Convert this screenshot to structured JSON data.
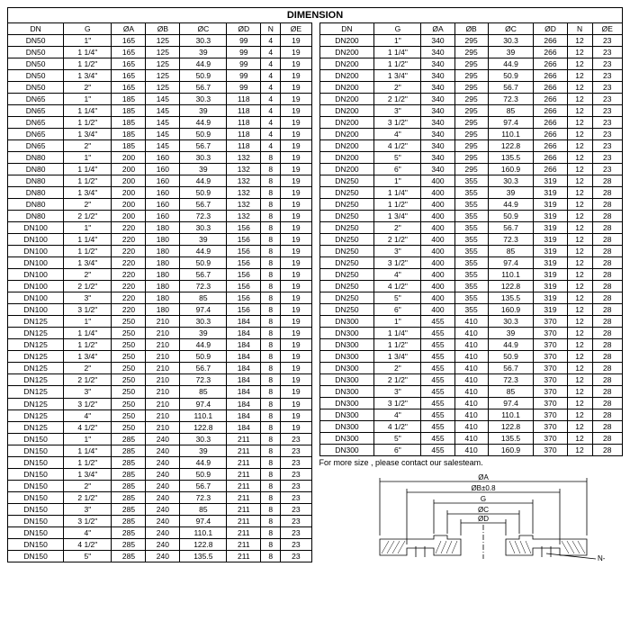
{
  "title": "DIMENSION",
  "columns": [
    "DN",
    "G",
    "ØA",
    "ØB",
    "ØC",
    "ØD",
    "N",
    "ØE"
  ],
  "note": "For more size , please contact our salesteam.",
  "left_rows": [
    [
      "DN50",
      "1\"",
      "165",
      "125",
      "30.3",
      "99",
      "4",
      "19"
    ],
    [
      "DN50",
      "1 1/4\"",
      "165",
      "125",
      "39",
      "99",
      "4",
      "19"
    ],
    [
      "DN50",
      "1 1/2\"",
      "165",
      "125",
      "44.9",
      "99",
      "4",
      "19"
    ],
    [
      "DN50",
      "1 3/4\"",
      "165",
      "125",
      "50.9",
      "99",
      "4",
      "19"
    ],
    [
      "DN50",
      "2\"",
      "165",
      "125",
      "56.7",
      "99",
      "4",
      "19"
    ],
    [
      "DN65",
      "1\"",
      "185",
      "145",
      "30.3",
      "118",
      "4",
      "19"
    ],
    [
      "DN65",
      "1 1/4\"",
      "185",
      "145",
      "39",
      "118",
      "4",
      "19"
    ],
    [
      "DN65",
      "1 1/2\"",
      "185",
      "145",
      "44.9",
      "118",
      "4",
      "19"
    ],
    [
      "DN65",
      "1 3/4\"",
      "185",
      "145",
      "50.9",
      "118",
      "4",
      "19"
    ],
    [
      "DN65",
      "2\"",
      "185",
      "145",
      "56.7",
      "118",
      "4",
      "19"
    ],
    [
      "DN80",
      "1\"",
      "200",
      "160",
      "30.3",
      "132",
      "8",
      "19"
    ],
    [
      "DN80",
      "1 1/4\"",
      "200",
      "160",
      "39",
      "132",
      "8",
      "19"
    ],
    [
      "DN80",
      "1 1/2\"",
      "200",
      "160",
      "44.9",
      "132",
      "8",
      "19"
    ],
    [
      "DN80",
      "1 3/4\"",
      "200",
      "160",
      "50.9",
      "132",
      "8",
      "19"
    ],
    [
      "DN80",
      "2\"",
      "200",
      "160",
      "56.7",
      "132",
      "8",
      "19"
    ],
    [
      "DN80",
      "2 1/2\"",
      "200",
      "160",
      "72.3",
      "132",
      "8",
      "19"
    ],
    [
      "DN100",
      "1\"",
      "220",
      "180",
      "30.3",
      "156",
      "8",
      "19"
    ],
    [
      "DN100",
      "1 1/4\"",
      "220",
      "180",
      "39",
      "156",
      "8",
      "19"
    ],
    [
      "DN100",
      "1 1/2\"",
      "220",
      "180",
      "44.9",
      "156",
      "8",
      "19"
    ],
    [
      "DN100",
      "1 3/4\"",
      "220",
      "180",
      "50.9",
      "156",
      "8",
      "19"
    ],
    [
      "DN100",
      "2\"",
      "220",
      "180",
      "56.7",
      "156",
      "8",
      "19"
    ],
    [
      "DN100",
      "2 1/2\"",
      "220",
      "180",
      "72.3",
      "156",
      "8",
      "19"
    ],
    [
      "DN100",
      "3\"",
      "220",
      "180",
      "85",
      "156",
      "8",
      "19"
    ],
    [
      "DN100",
      "3 1/2\"",
      "220",
      "180",
      "97.4",
      "156",
      "8",
      "19"
    ],
    [
      "DN125",
      "1\"",
      "250",
      "210",
      "30.3",
      "184",
      "8",
      "19"
    ],
    [
      "DN125",
      "1 1/4\"",
      "250",
      "210",
      "39",
      "184",
      "8",
      "19"
    ],
    [
      "DN125",
      "1 1/2\"",
      "250",
      "210",
      "44.9",
      "184",
      "8",
      "19"
    ],
    [
      "DN125",
      "1 3/4\"",
      "250",
      "210",
      "50.9",
      "184",
      "8",
      "19"
    ],
    [
      "DN125",
      "2\"",
      "250",
      "210",
      "56.7",
      "184",
      "8",
      "19"
    ],
    [
      "DN125",
      "2 1/2\"",
      "250",
      "210",
      "72.3",
      "184",
      "8",
      "19"
    ],
    [
      "DN125",
      "3\"",
      "250",
      "210",
      "85",
      "184",
      "8",
      "19"
    ],
    [
      "DN125",
      "3 1/2\"",
      "250",
      "210",
      "97.4",
      "184",
      "8",
      "19"
    ],
    [
      "DN125",
      "4\"",
      "250",
      "210",
      "110.1",
      "184",
      "8",
      "19"
    ],
    [
      "DN125",
      "4 1/2\"",
      "250",
      "210",
      "122.8",
      "184",
      "8",
      "19"
    ],
    [
      "DN150",
      "1\"",
      "285",
      "240",
      "30.3",
      "211",
      "8",
      "23"
    ],
    [
      "DN150",
      "1 1/4\"",
      "285",
      "240",
      "39",
      "211",
      "8",
      "23"
    ],
    [
      "DN150",
      "1 1/2\"",
      "285",
      "240",
      "44.9",
      "211",
      "8",
      "23"
    ],
    [
      "DN150",
      "1 3/4\"",
      "285",
      "240",
      "50.9",
      "211",
      "8",
      "23"
    ],
    [
      "DN150",
      "2\"",
      "285",
      "240",
      "56.7",
      "211",
      "8",
      "23"
    ],
    [
      "DN150",
      "2 1/2\"",
      "285",
      "240",
      "72.3",
      "211",
      "8",
      "23"
    ],
    [
      "DN150",
      "3\"",
      "285",
      "240",
      "85",
      "211",
      "8",
      "23"
    ],
    [
      "DN150",
      "3 1/2\"",
      "285",
      "240",
      "97.4",
      "211",
      "8",
      "23"
    ],
    [
      "DN150",
      "4\"",
      "285",
      "240",
      "110.1",
      "211",
      "8",
      "23"
    ],
    [
      "DN150",
      "4 1/2\"",
      "285",
      "240",
      "122.8",
      "211",
      "8",
      "23"
    ],
    [
      "DN150",
      "5\"",
      "285",
      "240",
      "135.5",
      "211",
      "8",
      "23"
    ]
  ],
  "right_rows": [
    [
      "DN200",
      "1\"",
      "340",
      "295",
      "30.3",
      "266",
      "12",
      "23"
    ],
    [
      "DN200",
      "1 1/4\"",
      "340",
      "295",
      "39",
      "266",
      "12",
      "23"
    ],
    [
      "DN200",
      "1 1/2\"",
      "340",
      "295",
      "44.9",
      "266",
      "12",
      "23"
    ],
    [
      "DN200",
      "1 3/4\"",
      "340",
      "295",
      "50.9",
      "266",
      "12",
      "23"
    ],
    [
      "DN200",
      "2\"",
      "340",
      "295",
      "56.7",
      "266",
      "12",
      "23"
    ],
    [
      "DN200",
      "2 1/2\"",
      "340",
      "295",
      "72.3",
      "266",
      "12",
      "23"
    ],
    [
      "DN200",
      "3\"",
      "340",
      "295",
      "85",
      "266",
      "12",
      "23"
    ],
    [
      "DN200",
      "3 1/2\"",
      "340",
      "295",
      "97.4",
      "266",
      "12",
      "23"
    ],
    [
      "DN200",
      "4\"",
      "340",
      "295",
      "110.1",
      "266",
      "12",
      "23"
    ],
    [
      "DN200",
      "4 1/2\"",
      "340",
      "295",
      "122.8",
      "266",
      "12",
      "23"
    ],
    [
      "DN200",
      "5\"",
      "340",
      "295",
      "135.5",
      "266",
      "12",
      "23"
    ],
    [
      "DN200",
      "6\"",
      "340",
      "295",
      "160.9",
      "266",
      "12",
      "23"
    ],
    [
      "DN250",
      "1\"",
      "400",
      "355",
      "30.3",
      "319",
      "12",
      "28"
    ],
    [
      "DN250",
      "1 1/4\"",
      "400",
      "355",
      "39",
      "319",
      "12",
      "28"
    ],
    [
      "DN250",
      "1 1/2\"",
      "400",
      "355",
      "44.9",
      "319",
      "12",
      "28"
    ],
    [
      "DN250",
      "1 3/4\"",
      "400",
      "355",
      "50.9",
      "319",
      "12",
      "28"
    ],
    [
      "DN250",
      "2\"",
      "400",
      "355",
      "56.7",
      "319",
      "12",
      "28"
    ],
    [
      "DN250",
      "2 1/2\"",
      "400",
      "355",
      "72.3",
      "319",
      "12",
      "28"
    ],
    [
      "DN250",
      "3\"",
      "400",
      "355",
      "85",
      "319",
      "12",
      "28"
    ],
    [
      "DN250",
      "3 1/2\"",
      "400",
      "355",
      "97.4",
      "319",
      "12",
      "28"
    ],
    [
      "DN250",
      "4\"",
      "400",
      "355",
      "110.1",
      "319",
      "12",
      "28"
    ],
    [
      "DN250",
      "4 1/2\"",
      "400",
      "355",
      "122.8",
      "319",
      "12",
      "28"
    ],
    [
      "DN250",
      "5\"",
      "400",
      "355",
      "135.5",
      "319",
      "12",
      "28"
    ],
    [
      "DN250",
      "6\"",
      "400",
      "355",
      "160.9",
      "319",
      "12",
      "28"
    ],
    [
      "DN300",
      "1\"",
      "455",
      "410",
      "30.3",
      "370",
      "12",
      "28"
    ],
    [
      "DN300",
      "1 1/4\"",
      "455",
      "410",
      "39",
      "370",
      "12",
      "28"
    ],
    [
      "DN300",
      "1 1/2\"",
      "455",
      "410",
      "44.9",
      "370",
      "12",
      "28"
    ],
    [
      "DN300",
      "1 3/4\"",
      "455",
      "410",
      "50.9",
      "370",
      "12",
      "28"
    ],
    [
      "DN300",
      "2\"",
      "455",
      "410",
      "56.7",
      "370",
      "12",
      "28"
    ],
    [
      "DN300",
      "2 1/2\"",
      "455",
      "410",
      "72.3",
      "370",
      "12",
      "28"
    ],
    [
      "DN300",
      "3\"",
      "455",
      "410",
      "85",
      "370",
      "12",
      "28"
    ],
    [
      "DN300",
      "3 1/2\"",
      "455",
      "410",
      "97.4",
      "370",
      "12",
      "28"
    ],
    [
      "DN300",
      "4\"",
      "455",
      "410",
      "110.1",
      "370",
      "12",
      "28"
    ],
    [
      "DN300",
      "4 1/2\"",
      "455",
      "410",
      "122.8",
      "370",
      "12",
      "28"
    ],
    [
      "DN300",
      "5\"",
      "455",
      "410",
      "135.5",
      "370",
      "12",
      "28"
    ],
    [
      "DN300",
      "6\"",
      "455",
      "410",
      "160.9",
      "370",
      "12",
      "28"
    ]
  ],
  "diagram": {
    "labels": {
      "oa": "ØA",
      "ob": "ØB±0.8",
      "g": "G",
      "oc": "ØC",
      "od": "ØD",
      "noe": "N-ØE"
    }
  }
}
